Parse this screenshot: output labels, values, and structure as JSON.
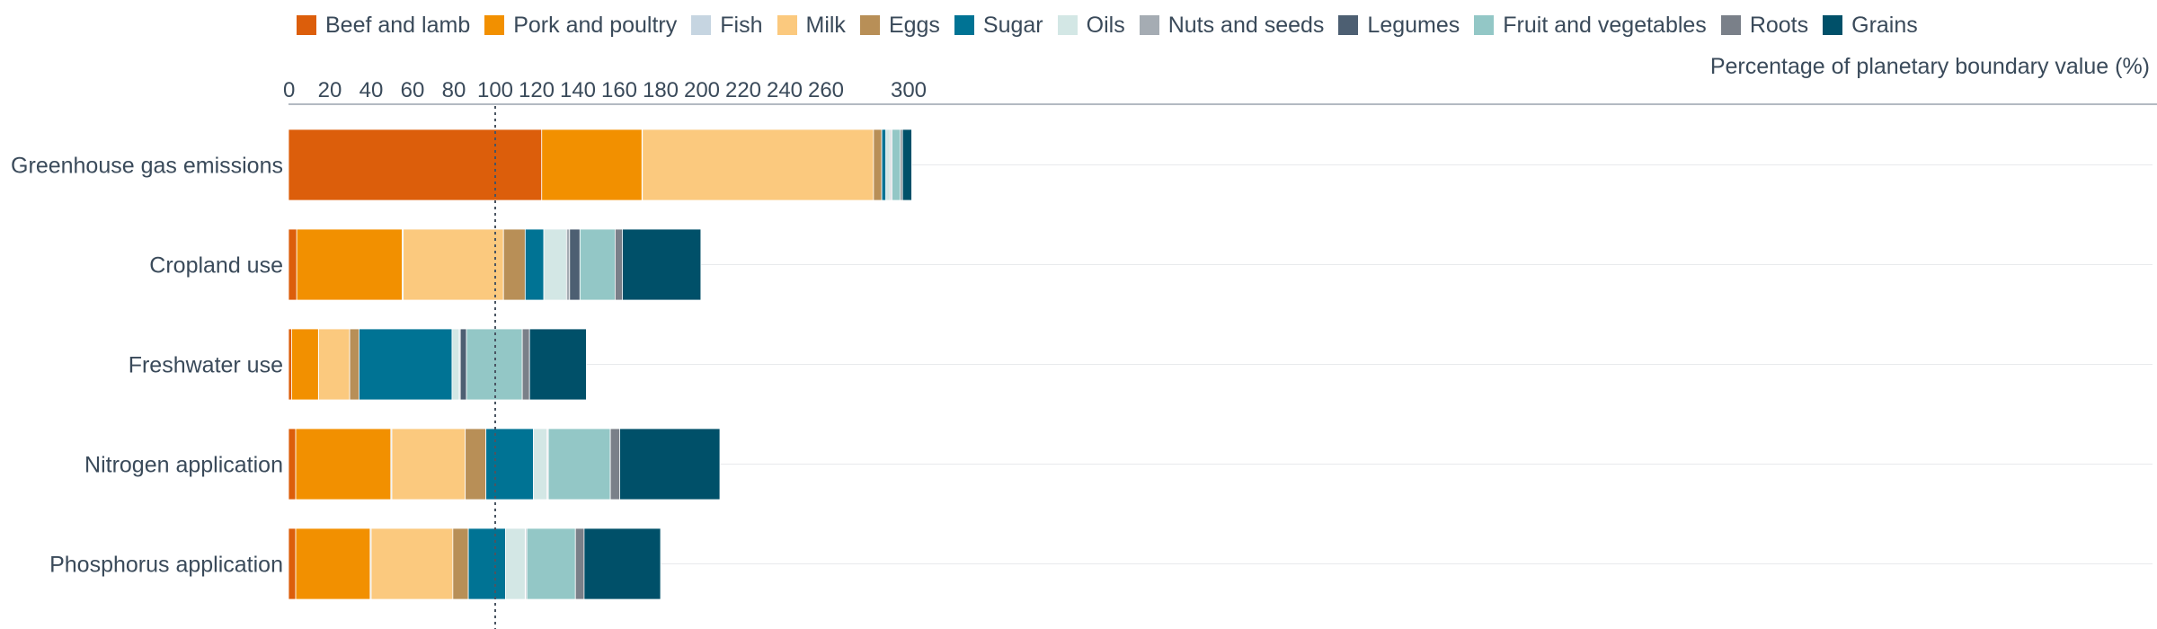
{
  "chart_data": {
    "type": "bar",
    "orientation": "horizontal",
    "stacked": true,
    "xlabel": "Percentage of planetary boundary value (%)",
    "xlim": [
      0,
      300
    ],
    "x_ticks": [
      0,
      20,
      40,
      60,
      80,
      100,
      120,
      140,
      160,
      180,
      200,
      220,
      240,
      260,
      300
    ],
    "x_tick_labels": [
      "0",
      "20",
      "40",
      "60",
      "80",
      "100",
      "120",
      "140",
      "160",
      "180",
      "200",
      "220",
      "240",
      "260",
      "300"
    ],
    "reference_line": 100,
    "grid": true,
    "legend_position": "top",
    "categories": [
      "Greenhouse gas emissions",
      "Cropland use",
      "Freshwater use",
      "Nitrogen application",
      "Phosphorus application"
    ],
    "series": [
      {
        "name": "Beef and lamb",
        "color": "#dc5e0b",
        "values": [
          122.5,
          4,
          1.5,
          3.5,
          3.5
        ]
      },
      {
        "name": "Pork and poultry",
        "color": "#f29000",
        "values": [
          48.5,
          51,
          13,
          46,
          36
        ]
      },
      {
        "name": "Fish",
        "color": "#c6d5e1",
        "values": [
          0.2,
          0.5,
          0.1,
          0.5,
          0.5
        ]
      },
      {
        "name": "Milk",
        "color": "#fbc97e",
        "values": [
          111.8,
          48.5,
          15,
          35.5,
          39.5
        ]
      },
      {
        "name": "Eggs",
        "color": "#b88f57",
        "values": [
          4,
          10.5,
          4.5,
          10,
          7.5
        ]
      },
      {
        "name": "Sugar",
        "color": "#007394",
        "values": [
          2,
          9,
          45,
          23,
          18
        ]
      },
      {
        "name": "Oils",
        "color": "#d3e7e5",
        "values": [
          2,
          11,
          3.5,
          6.5,
          9.5
        ]
      },
      {
        "name": "Nuts and seeds",
        "color": "#a5acb3",
        "values": [
          0.5,
          1.5,
          0.5,
          0.5,
          0.3
        ]
      },
      {
        "name": "Legumes",
        "color": "#4d5f72",
        "values": [
          0.5,
          5,
          3,
          0.2,
          0.5
        ]
      },
      {
        "name": "Fruit and vegetables",
        "color": "#93c7c6",
        "values": [
          4,
          17,
          27,
          30,
          23.5
        ]
      },
      {
        "name": "Roots",
        "color": "#7a8089",
        "values": [
          1,
          3.5,
          3.5,
          4.5,
          4.2
        ]
      },
      {
        "name": "Grains",
        "color": "#005069",
        "values": [
          4.5,
          38,
          27.5,
          48.5,
          37
        ]
      }
    ]
  }
}
